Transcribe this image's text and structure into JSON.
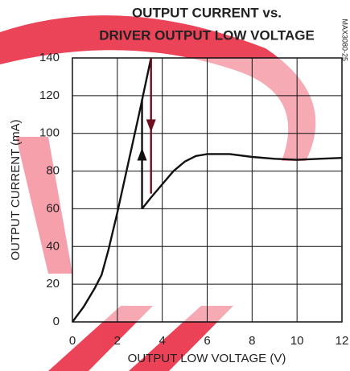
{
  "chart_data": {
    "type": "line",
    "title": [
      "OUTPUT CURRENT vs.",
      "DRIVER OUTPUT LOW VOLTAGE"
    ],
    "side_label": "MAX3080-25",
    "x_label": "OUTPUT LOW VOLTAGE (V)",
    "y_label": "OUTPUT CURRENT (mA)",
    "xlim": [
      0,
      12
    ],
    "xticks": [
      0,
      2,
      4,
      6,
      8,
      10,
      12
    ],
    "ylim": [
      0,
      140
    ],
    "yticks": [
      0,
      20,
      40,
      60,
      80,
      100,
      120,
      140
    ],
    "grid": true,
    "series": [
      {
        "color": "#111111",
        "x": [
          0,
          0.5,
          1,
          1.3,
          1.6,
          2,
          2.5,
          3,
          3.5
        ],
        "values": [
          0,
          8,
          18,
          25,
          38,
          58,
          85,
          112,
          140
        ]
      },
      {
        "color": "#111111",
        "x": [
          3.1,
          3.5,
          4,
          4.5,
          5,
          5.5,
          6,
          7,
          8,
          9,
          10,
          11,
          12
        ],
        "values": [
          60,
          66,
          73,
          80,
          85,
          88,
          89,
          89,
          87.5,
          86.5,
          86,
          86.5,
          87
        ]
      },
      {
        "color": "#111111",
        "arrow": "up",
        "x": [
          3.1,
          3.1
        ],
        "values": [
          60,
          118
        ]
      },
      {
        "color": "#6e1020",
        "arrow": "down",
        "x": [
          3.5,
          3.5
        ],
        "values": [
          140,
          68
        ]
      }
    ]
  }
}
